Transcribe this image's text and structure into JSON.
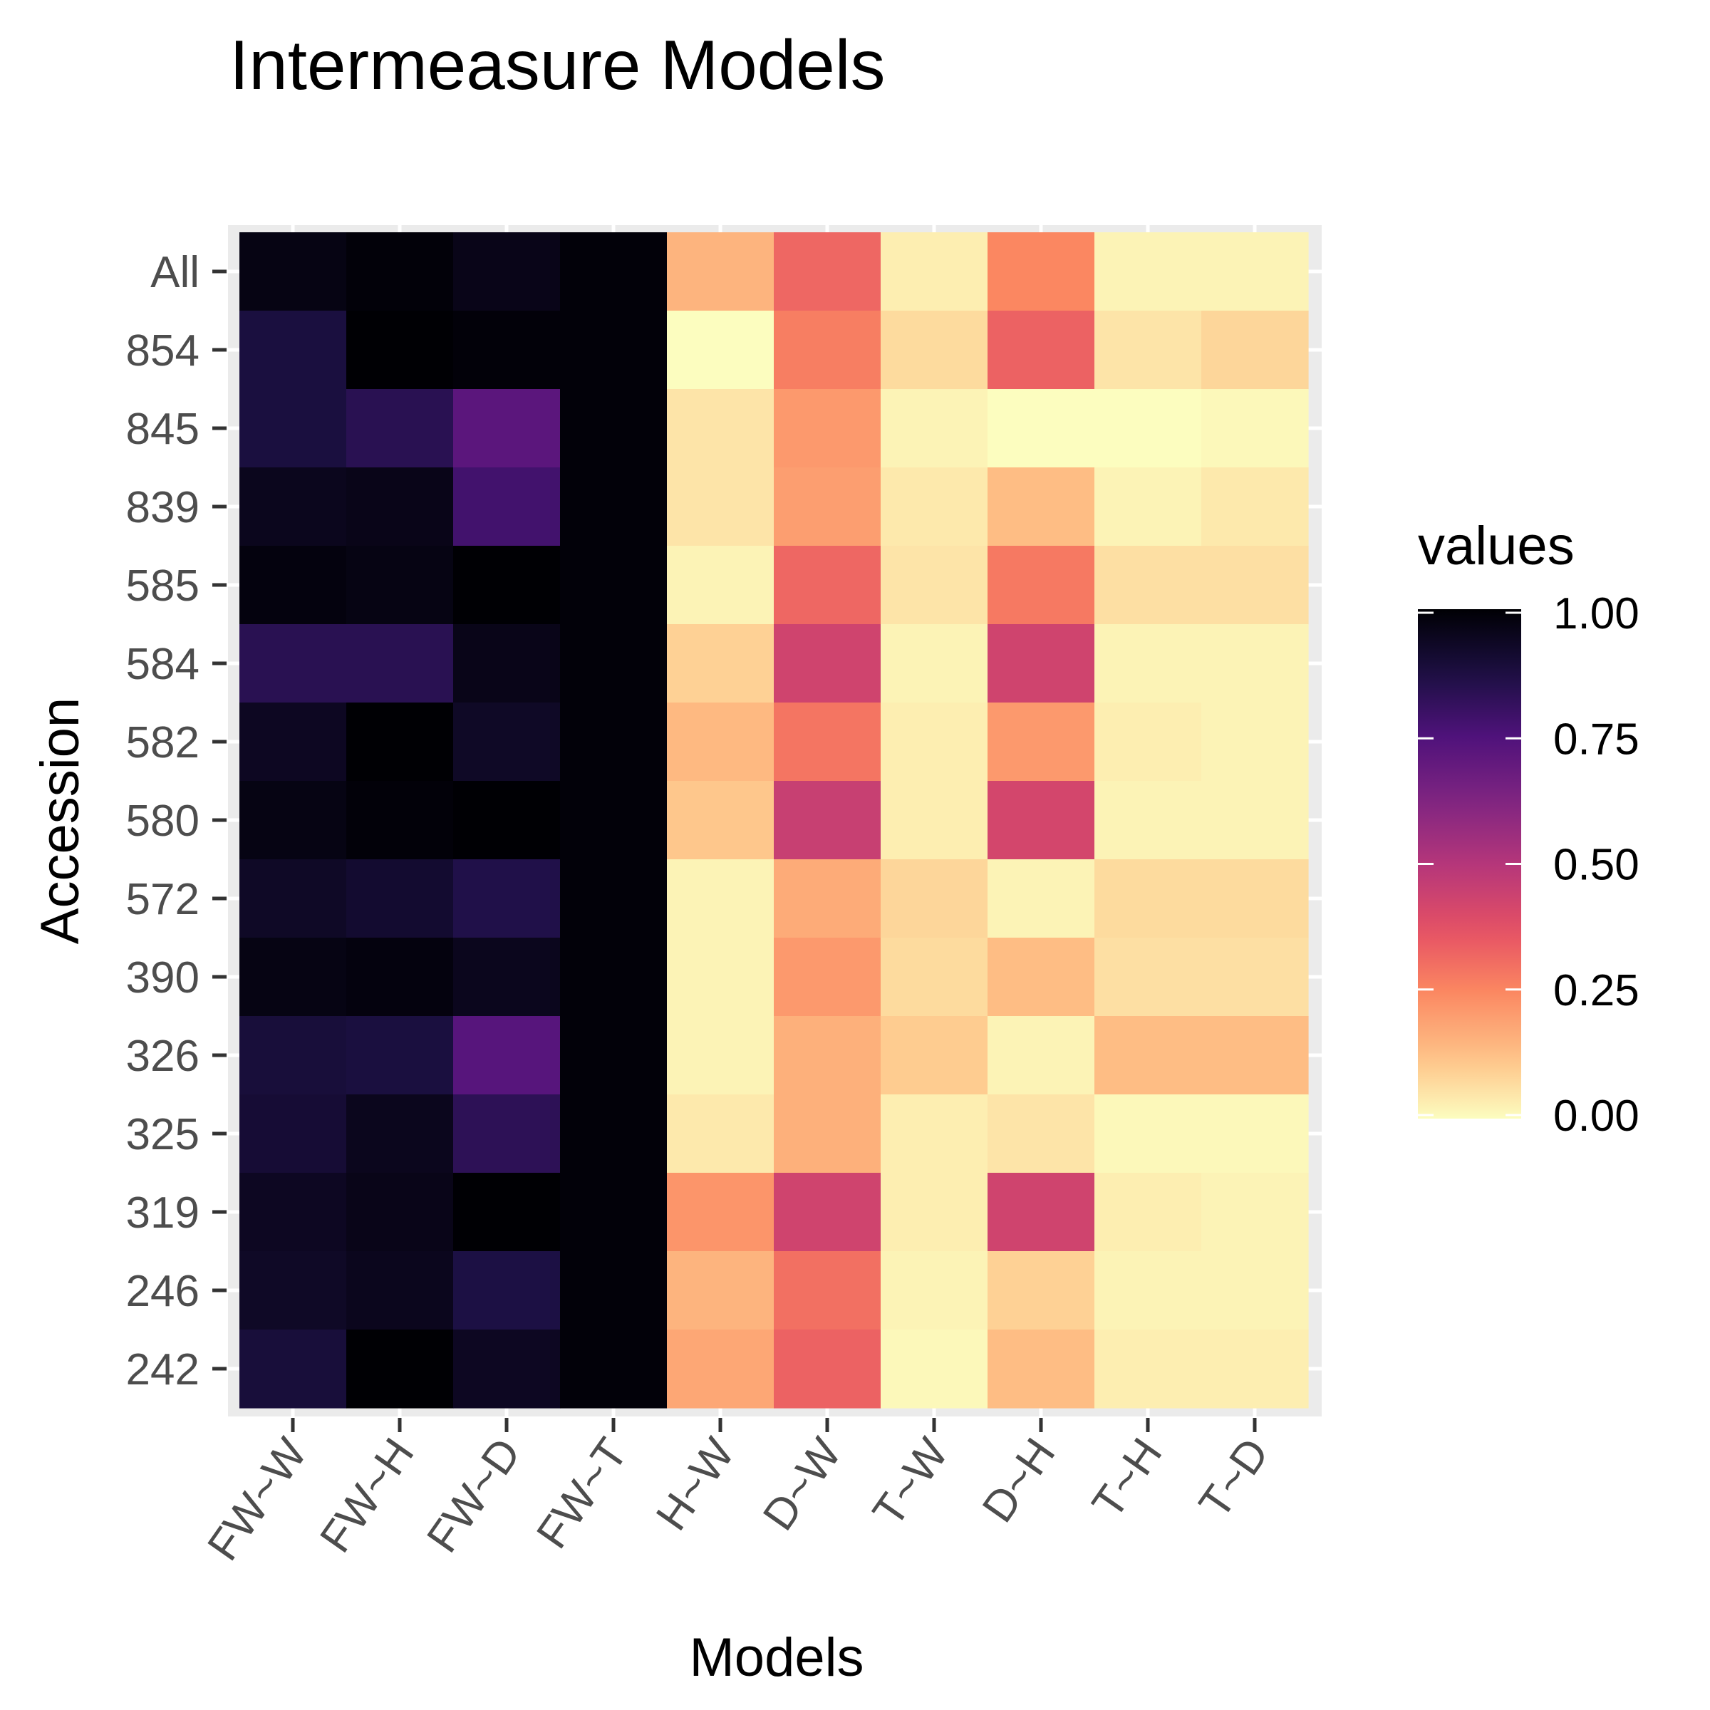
{
  "chart_data": {
    "type": "heatmap",
    "title": "Intermeasure Models",
    "xlabel": "Models",
    "ylabel": "Accession",
    "x_categories": [
      "FW~W",
      "FW~H",
      "FW~D",
      "FW~T",
      "H~W",
      "D~W",
      "T~W",
      "D~H",
      "T~H",
      "T~D"
    ],
    "y_categories": [
      "All",
      "854",
      "845",
      "839",
      "585",
      "584",
      "582",
      "580",
      "572",
      "390",
      "326",
      "325",
      "319",
      "246",
      "242"
    ],
    "values": [
      [
        0.97,
        0.99,
        0.96,
        0.99,
        0.15,
        0.32,
        0.03,
        0.25,
        0.02,
        0.02
      ],
      [
        0.88,
        1.0,
        0.99,
        0.99,
        0.0,
        0.27,
        0.07,
        0.33,
        0.05,
        0.08
      ],
      [
        0.88,
        0.84,
        0.72,
        0.99,
        0.05,
        0.21,
        0.02,
        0.0,
        0.0,
        0.01
      ],
      [
        0.95,
        0.96,
        0.78,
        0.99,
        0.05,
        0.2,
        0.04,
        0.13,
        0.02,
        0.04
      ],
      [
        0.98,
        0.97,
        1.0,
        0.99,
        0.02,
        0.32,
        0.05,
        0.28,
        0.06,
        0.06
      ],
      [
        0.84,
        0.84,
        0.96,
        0.99,
        0.09,
        0.43,
        0.02,
        0.43,
        0.02,
        0.02
      ],
      [
        0.94,
        1.0,
        0.93,
        0.99,
        0.14,
        0.29,
        0.03,
        0.21,
        0.03,
        0.02
      ],
      [
        0.97,
        0.99,
        1.0,
        0.99,
        0.11,
        0.45,
        0.03,
        0.42,
        0.02,
        0.02
      ],
      [
        0.93,
        0.91,
        0.86,
        0.99,
        0.02,
        0.17,
        0.08,
        0.02,
        0.07,
        0.07
      ],
      [
        0.97,
        0.98,
        0.95,
        0.99,
        0.02,
        0.21,
        0.07,
        0.13,
        0.06,
        0.06
      ],
      [
        0.89,
        0.88,
        0.73,
        0.99,
        0.02,
        0.16,
        0.1,
        0.02,
        0.13,
        0.13
      ],
      [
        0.9,
        0.95,
        0.83,
        0.99,
        0.04,
        0.16,
        0.03,
        0.05,
        0.01,
        0.01
      ],
      [
        0.94,
        0.96,
        1.0,
        0.99,
        0.22,
        0.43,
        0.03,
        0.43,
        0.03,
        0.02
      ],
      [
        0.93,
        0.95,
        0.87,
        0.99,
        0.15,
        0.3,
        0.02,
        0.09,
        0.02,
        0.02
      ],
      [
        0.89,
        1.0,
        0.94,
        0.99,
        0.18,
        0.33,
        0.01,
        0.13,
        0.03,
        0.03
      ]
    ],
    "scale": {
      "min": 0,
      "max": 1,
      "palette": "magma (reversed)",
      "low_color": "#fcfdbf",
      "high_color": "#000004"
    },
    "legend": {
      "title": "values",
      "ticks": [
        "0.00",
        "0.25",
        "0.50",
        "0.75",
        "1.00"
      ],
      "tick_values": [
        0,
        0.25,
        0.5,
        0.75,
        1
      ],
      "placement": "right"
    },
    "grid": true,
    "panel_background": "#ebebeb",
    "grid_color": "#ffffff"
  }
}
